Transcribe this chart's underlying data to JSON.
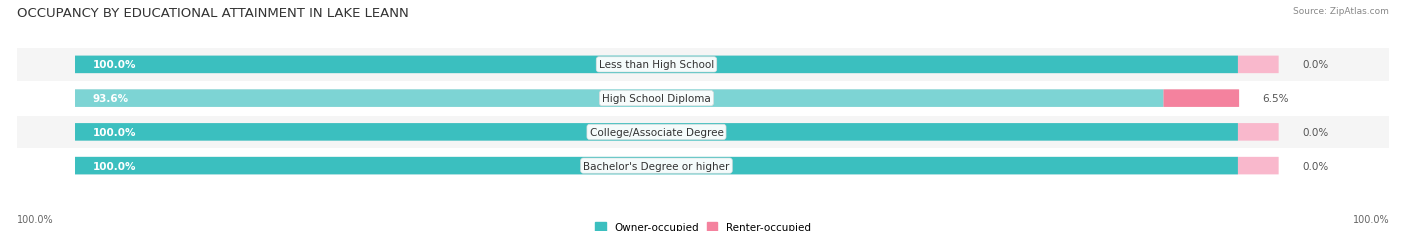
{
  "title": "OCCUPANCY BY EDUCATIONAL ATTAINMENT IN LAKE LEANN",
  "source": "Source: ZipAtlas.com",
  "categories": [
    "Less than High School",
    "High School Diploma",
    "College/Associate Degree",
    "Bachelor's Degree or higher"
  ],
  "owner_pct": [
    100.0,
    93.6,
    100.0,
    100.0
  ],
  "renter_pct": [
    0.0,
    6.5,
    0.0,
    0.0
  ],
  "owner_color": "#3bbfbf",
  "owner_color_light": "#7dd4d4",
  "renter_color": "#f4829e",
  "renter_color_light": "#f9b8cc",
  "bg_bar_color": "#e8e8e8",
  "bar_height": 0.52,
  "title_fontsize": 9.5,
  "label_fontsize": 7.5,
  "tick_fontsize": 7.0,
  "legend_fontsize": 7.5,
  "x_left_label": "100.0%",
  "x_right_label": "100.0%",
  "background_color": "#ffffff",
  "bar_bg_color": "#ececec"
}
